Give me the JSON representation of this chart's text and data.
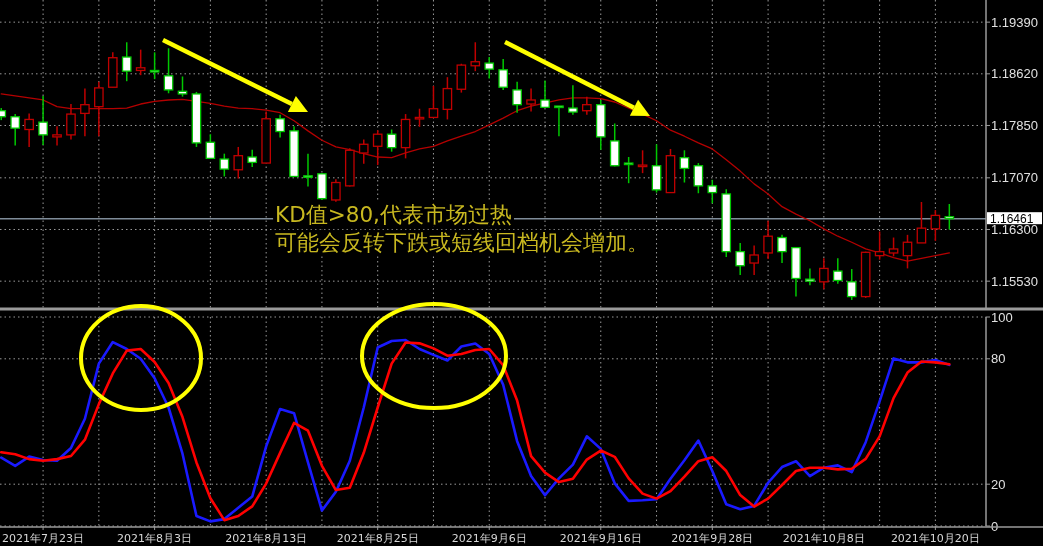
{
  "chart_data": [
    {
      "type": "candlestick",
      "tick_labels": "y",
      "grid": true,
      "categories": [
        null,
        null,
        null,
        null,
        null,
        null,
        null,
        null,
        null,
        null,
        null,
        null,
        null,
        null,
        null,
        null,
        null,
        null,
        null,
        null,
        null,
        null,
        null,
        null,
        null,
        null,
        null,
        null,
        null,
        null,
        null,
        null,
        null,
        null,
        null,
        null,
        null,
        null,
        null,
        null,
        null,
        null,
        null,
        null,
        null,
        null,
        null,
        null,
        null,
        null,
        null,
        null,
        null,
        null,
        null,
        null,
        null,
        null,
        null,
        null,
        null,
        null,
        null,
        null,
        null,
        null,
        null,
        null,
        null
      ],
      "ohlc": [
        [
          1.1807,
          1.1811,
          1.1793,
          1.1798
        ],
        [
          1.1798,
          1.1802,
          1.1755,
          1.1781
        ],
        [
          1.1779,
          1.1803,
          1.1753,
          1.1794
        ],
        [
          1.179,
          1.1829,
          1.1756,
          1.1771
        ],
        [
          1.1768,
          1.1784,
          1.1755,
          1.1771
        ],
        [
          1.1771,
          1.1817,
          1.1764,
          1.1802
        ],
        [
          1.1803,
          1.184,
          1.1769,
          1.1816
        ],
        [
          1.1813,
          1.185,
          1.1769,
          1.1841
        ],
        [
          1.1842,
          1.1894,
          1.1842,
          1.1886
        ],
        [
          1.1887,
          1.1909,
          1.1851,
          1.1866
        ],
        [
          1.1867,
          1.1898,
          1.186,
          1.1871
        ],
        [
          1.1867,
          1.1894,
          1.1854,
          1.1866
        ],
        [
          1.1859,
          1.19,
          1.1833,
          1.1838
        ],
        [
          1.1836,
          1.1858,
          1.1828,
          1.1832
        ],
        [
          1.1832,
          1.1835,
          1.1753,
          1.1759
        ],
        [
          1.176,
          1.1772,
          1.1735,
          1.1736
        ],
        [
          1.1735,
          1.1743,
          1.1709,
          1.172
        ],
        [
          1.1719,
          1.1753,
          1.1706,
          1.174
        ],
        [
          1.1738,
          1.1749,
          1.1723,
          1.173
        ],
        [
          1.1729,
          1.1806,
          1.1729,
          1.1795
        ],
        [
          1.1795,
          1.1801,
          1.1767,
          1.1776
        ],
        [
          1.1777,
          1.1784,
          1.1709,
          1.1709
        ],
        [
          1.171,
          1.1743,
          1.1694,
          1.1709
        ],
        [
          1.1713,
          1.1714,
          1.1674,
          1.1676
        ],
        [
          1.1674,
          1.1705,
          1.1671,
          1.17
        ],
        [
          1.1695,
          1.1751,
          1.1694,
          1.1748
        ],
        [
          1.1744,
          1.1764,
          1.1728,
          1.1757
        ],
        [
          1.1754,
          1.1778,
          1.1726,
          1.1772
        ],
        [
          1.1772,
          1.1779,
          1.1746,
          1.1752
        ],
        [
          1.1752,
          1.1802,
          1.1736,
          1.1794
        ],
        [
          1.1795,
          1.181,
          1.1783,
          1.1797
        ],
        [
          1.1797,
          1.1844,
          1.1796,
          1.181
        ],
        [
          1.1809,
          1.1857,
          1.1794,
          1.184
        ],
        [
          1.1839,
          1.1877,
          1.1834,
          1.1875
        ],
        [
          1.1874,
          1.1909,
          1.1866,
          1.188
        ],
        [
          1.1878,
          1.1887,
          1.1855,
          1.1869
        ],
        [
          1.1868,
          1.1884,
          1.1838,
          1.1842
        ],
        [
          1.1838,
          1.185,
          1.1804,
          1.1816
        ],
        [
          1.1817,
          1.184,
          1.1806,
          1.1823
        ],
        [
          1.1823,
          1.1852,
          1.1811,
          1.1812
        ],
        [
          1.1814,
          1.1814,
          1.1769,
          1.1812
        ],
        [
          1.1811,
          1.1845,
          1.1801,
          1.1805
        ],
        [
          1.1807,
          1.1828,
          1.1801,
          1.1816
        ],
        [
          1.1816,
          1.1823,
          1.1749,
          1.1768
        ],
        [
          1.1762,
          1.1788,
          1.1724,
          1.1725
        ],
        [
          1.1729,
          1.1738,
          1.1699,
          1.1728
        ],
        [
          1.1725,
          1.1748,
          1.1714,
          1.1726
        ],
        [
          1.1725,
          1.1757,
          1.1685,
          1.1689
        ],
        [
          1.1685,
          1.175,
          1.1685,
          1.174
        ],
        [
          1.1737,
          1.1748,
          1.17,
          1.1721
        ],
        [
          1.1725,
          1.1729,
          1.1684,
          1.1695
        ],
        [
          1.1695,
          1.1704,
          1.1669,
          1.1685
        ],
        [
          1.1683,
          1.169,
          1.1589,
          1.1597
        ],
        [
          1.1597,
          1.161,
          1.1562,
          1.1576
        ],
        [
          1.158,
          1.1606,
          1.1562,
          1.1592
        ],
        [
          1.1595,
          1.1643,
          1.1586,
          1.162
        ],
        [
          1.1618,
          1.1622,
          1.158,
          1.1597
        ],
        [
          1.1603,
          1.1603,
          1.153,
          1.1557
        ],
        [
          1.1556,
          1.1572,
          1.1547,
          1.1553
        ],
        [
          1.1552,
          1.1587,
          1.1541,
          1.1572
        ],
        [
          1.1568,
          1.1587,
          1.1549,
          1.1554
        ],
        [
          1.1552,
          1.1571,
          1.1525,
          1.153
        ],
        [
          1.153,
          1.1597,
          1.1528,
          1.1596
        ],
        [
          1.1591,
          1.1627,
          1.1585,
          1.1597
        ],
        [
          1.1595,
          1.1618,
          1.159,
          1.1601
        ],
        [
          1.1591,
          1.1622,
          1.1572,
          1.1611
        ],
        [
          1.161,
          1.1671,
          1.161,
          1.1632
        ],
        [
          1.1631,
          1.1659,
          1.1613,
          1.1651
        ],
        [
          1.1649,
          1.1668,
          1.163,
          1.16461
        ]
      ],
      "series": [
        {
          "type": "line",
          "color": "#b40000",
          "values": [
            1.1832,
            1.1829,
            1.1826,
            1.1823,
            1.1813,
            1.181,
            1.181,
            1.181,
            1.181,
            1.1811,
            1.1817,
            1.1821,
            1.1823,
            1.1824,
            null,
            1.1818,
            1.1814,
            1.1811,
            1.181,
            1.1808,
            1.1804,
            1.1792,
            1.1777,
            1.1763,
            1.1753,
            1.1749,
            1.1743,
            1.1738,
            1.1737,
            1.1744,
            1.175,
            1.1754,
            1.1762,
            1.1769,
            1.1776,
            1.1786,
            1.1796,
            1.1807,
            1.1814,
            null,
            1.1823,
            1.1826,
            1.1826,
            1.1825,
            1.182,
            null,
            1.1802,
            1.1792,
            1.1778,
            1.1769,
            1.1759,
            1.175,
            1.1734,
            1.1717,
            1.1698,
            1.1683,
            1.1664,
            1.1653,
            1.1643,
            1.1631,
            1.162,
            1.1611,
            1.1601,
            1.1595,
            1.1588,
            1.1583,
            1.1587,
            1.1591,
            1.1595
          ]
        }
      ],
      "ylim": [
        1.1513,
        1.1972
      ],
      "yticks": [
        {
          "value": 1.1939,
          "label": "1.19390"
        },
        {
          "value": 1.1862,
          "label": "1.18620"
        },
        {
          "value": 1.1785,
          "label": "1.17850"
        },
        {
          "value": 1.1707,
          "label": "1.17070"
        },
        {
          "value": 1.163,
          "label": "1.16300"
        },
        {
          "value": 1.1553,
          "label": "1.15530"
        }
      ],
      "ref_lines": [
        {
          "axis": "y",
          "value": 1.16461,
          "label": "1.16461",
          "color": "#7f8c99"
        }
      ],
      "annotations": [
        "KD值>80,代表市场过热",
        "可能会反转下跌或短线回档机会增加。"
      ]
    },
    {
      "type": "line",
      "grid": true,
      "categories": [
        null,
        null,
        null,
        "2021年7月23日",
        null,
        null,
        null,
        null,
        null,
        null,
        null,
        "2021年8月3日",
        null,
        null,
        null,
        null,
        null,
        null,
        null,
        "2021年8月13日",
        null,
        null,
        null,
        null,
        null,
        null,
        null,
        "2021年8月25日",
        null,
        null,
        null,
        null,
        null,
        null,
        null,
        "2021年9月6日",
        null,
        null,
        null,
        null,
        null,
        null,
        null,
        "2021年9月16日",
        null,
        null,
        null,
        null,
        null,
        null,
        null,
        "2021年9月28日",
        null,
        null,
        null,
        null,
        null,
        null,
        null,
        "2021年10月8日",
        null,
        null,
        null,
        null,
        null,
        null,
        null,
        "2021年10月20日",
        null
      ],
      "series": [
        {
          "color": "#1a1aff",
          "values": [
            32.7,
            28.8,
            33.2,
            31.6,
            31.2,
            37.3,
            51.3,
            77.7,
            88.0,
            84.7,
            80.0,
            70.7,
            56.7,
            34.6,
            4.8,
            2.2,
            3.3,
            8.7,
            14.1,
            38.1,
            56.0,
            54.0,
            30.4,
            7.4,
            16.4,
            31.2,
            56.7,
            85.4,
            88.5,
            89.0,
            84.7,
            81.9,
            79.2,
            85.9,
            87.3,
            82.3,
            67.6,
            40.6,
            23.9,
            14.7,
            22.8,
            29.4,
            42.9,
            36.9,
            20.4,
            12.0,
            12.3,
            12.8,
            22.6,
            31.5,
            40.9,
            26.3,
            10.4,
            8.0,
            9.6,
            20.7,
            28.2,
            31.0,
            23.9,
            27.9,
            29.0,
            25.8,
            40.1,
            59.6,
            80.2,
            78.3,
            78.3,
            79.4,
            77.1
          ]
        },
        {
          "color": "#ff0000",
          "values": [
            35.3,
            34.3,
            32.0,
            31.2,
            32.0,
            33.5,
            41.3,
            58.3,
            73.0,
            83.9,
            84.7,
            78.5,
            68.4,
            52.1,
            30.4,
            13.3,
            2.8,
            4.8,
            9.4,
            20.3,
            35.0,
            49.3,
            45.6,
            28.8,
            17.2,
            18.3,
            35.0,
            56.7,
            77.7,
            87.8,
            87.4,
            85.0,
            81.5,
            82.3,
            84.2,
            84.7,
            76.9,
            60.0,
            33.4,
            25.5,
            21.0,
            22.6,
            31.8,
            36.1,
            33.1,
            22.8,
            15.5,
            13.1,
            16.7,
            23.6,
            31.0,
            32.9,
            26.3,
            14.8,
            9.3,
            13.1,
            19.6,
            26.3,
            27.9,
            27.9,
            27.1,
            27.4,
            32.1,
            42.9,
            61.2,
            73.4,
            78.7,
            78.3,
            77.4
          ]
        }
      ],
      "ylim": [
        0,
        100
      ],
      "yticks": [
        0,
        20,
        80,
        100
      ]
    }
  ]
}
